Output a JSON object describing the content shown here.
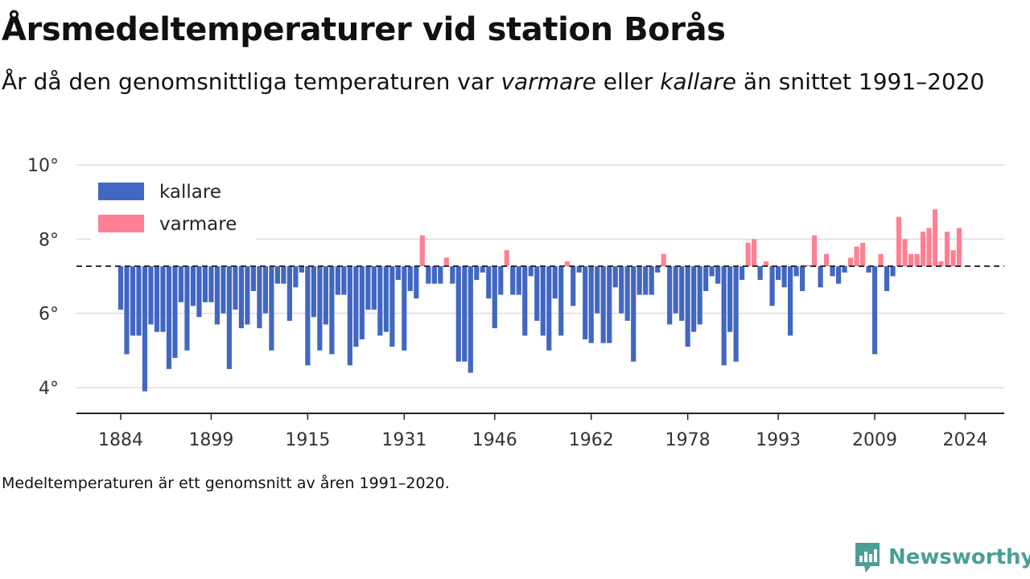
{
  "header": {
    "title": "Årsmedeltemperaturer vid station Borås",
    "subtitle_part1": "År då den genomsnittliga temperaturen var ",
    "subtitle_warm": "varmare",
    "subtitle_part2": " eller ",
    "subtitle_cold": "kallare",
    "subtitle_part3": " än snittet 1991–2020"
  },
  "footer": {
    "note": "Medeltemperaturen är ett genomsnitt av åren 1991–2020.",
    "brand": "Newsworthy"
  },
  "colors": {
    "cold": "#4267c2",
    "warm": "#ff8093",
    "baseline": "#333333",
    "grid": "#dddddd",
    "brand": "#4a9e96"
  },
  "chart_data": {
    "type": "bar",
    "baseline": 7.27,
    "baseline_style": "dashed",
    "ylim": [
      3.5,
      10.3
    ],
    "y_ticks": [
      4,
      6,
      8,
      10
    ],
    "y_tick_labels": [
      "4°",
      "6°",
      "8°",
      "10°"
    ],
    "x_ticks": [
      1884,
      1899,
      1915,
      1931,
      1946,
      1962,
      1978,
      1993,
      2009,
      2024
    ],
    "x_tick_labels": [
      "1884",
      "1899",
      "1915",
      "1931",
      "1946",
      "1962",
      "1978",
      "1993",
      "2009",
      "2024"
    ],
    "grid": true,
    "legend_position": "top-left",
    "series": [
      {
        "name": "kallare",
        "key": "cold"
      },
      {
        "name": "varmare",
        "key": "warm"
      }
    ],
    "start_year": 1884,
    "values": [
      6.1,
      4.9,
      5.4,
      5.4,
      3.9,
      5.7,
      5.5,
      5.5,
      4.5,
      4.8,
      6.3,
      5.0,
      6.2,
      5.9,
      6.3,
      6.3,
      5.7,
      6.0,
      4.5,
      6.1,
      5.6,
      5.7,
      6.6,
      5.6,
      6.0,
      5.0,
      6.8,
      6.8,
      5.8,
      6.7,
      7.1,
      4.6,
      5.9,
      5.0,
      5.7,
      4.9,
      6.5,
      6.5,
      4.6,
      5.1,
      5.3,
      6.1,
      6.1,
      5.4,
      5.5,
      5.1,
      6.9,
      5.0,
      6.6,
      6.4,
      8.1,
      6.8,
      6.8,
      6.8,
      7.5,
      6.8,
      4.7,
      4.7,
      4.4,
      6.9,
      7.1,
      6.4,
      5.6,
      6.5,
      7.7,
      6.5,
      6.5,
      5.4,
      7.0,
      5.8,
      5.4,
      5.0,
      6.4,
      5.4,
      7.4,
      6.2,
      7.1,
      5.3,
      5.2,
      6.0,
      5.2,
      5.2,
      6.7,
      6.0,
      5.8,
      4.7,
      6.5,
      6.5,
      6.5,
      7.1,
      7.6,
      5.7,
      6.0,
      5.8,
      5.1,
      5.5,
      5.7,
      6.6,
      7.0,
      6.8,
      4.6,
      5.5,
      4.7,
      6.9,
      7.9,
      8.0,
      6.9,
      7.4,
      6.2,
      6.9,
      6.7,
      5.4,
      7.0,
      6.6,
      7.3,
      8.1,
      6.7,
      7.6,
      7.0,
      6.8,
      7.1,
      7.5,
      7.8,
      7.9,
      7.1,
      4.9,
      7.6,
      6.6,
      7.0,
      8.6,
      8.0,
      7.6,
      7.6,
      8.2,
      8.3,
      8.8,
      7.4,
      8.2,
      7.7,
      8.3
    ]
  }
}
